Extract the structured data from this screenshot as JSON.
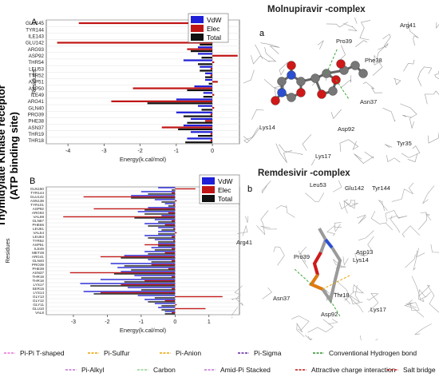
{
  "figure": {
    "side_title": "Thymidylate Kinase  receptor\n(ATP binding site)",
    "panel_A_letter": "A",
    "panel_B_letter": "B",
    "panel_a_letter": "a",
    "panel_b_letter": "b",
    "molnupiravir_title": "Molnupiravir -complex",
    "remdesivir_title": "Remdesivir -complex"
  },
  "colors": {
    "vdw": "#1f1fd8",
    "elec": "#c01515",
    "total": "#111111"
  },
  "legend": [
    "VdW",
    "Elec",
    "Total"
  ],
  "interaction_legend": [
    {
      "label": "Pi-Pi T-shaped",
      "color": "#e86fd8"
    },
    {
      "label": "Pi-Sulfur",
      "color": "#e8a400"
    },
    {
      "label": "Pi-Anion",
      "color": "#e8a400"
    },
    {
      "label": "Pi-Sigma",
      "color": "#6020a0"
    },
    {
      "label": "Conventional Hydrogen bond",
      "color": "#2f8f2f"
    },
    {
      "label": "Pi-Alkyl",
      "color": "#c070d0"
    },
    {
      "label": "Carbon",
      "color": "#8fd08f"
    },
    {
      "label": "Amid-Pi Stacked",
      "color": "#c070d0"
    },
    {
      "label": "Attractive charge interaction",
      "color": "#c01515"
    },
    {
      "label": "Salt bridge",
      "color": "#c01515"
    }
  ],
  "mol_labels_a": [
    "Arg41",
    "Pro39",
    "Phe38",
    "Asn37",
    "Asp92",
    "Lys14",
    "Lys17",
    "Tyr35"
  ],
  "mol_labels_b": [
    "Leu53",
    "Glu142",
    "Tyr144",
    "Arg41",
    "Pro39",
    "Asp13",
    "Lys14",
    "Asn37",
    "Thr18",
    "Asp92",
    "Lys17"
  ],
  "chart_data": [
    {
      "type": "bar",
      "orientation": "horizontal",
      "xlabel": "Energy(k.cal/mol)",
      "ylabel": "Residues",
      "xlim": [
        -4.6,
        0.75
      ],
      "xticks": [
        -4,
        -3,
        -2,
        -1,
        0
      ],
      "categories": [
        "GLU145",
        "TYR144",
        "ILE143",
        "GLU142",
        "ARG93",
        "ASP92",
        "THR54",
        "LEU53",
        "TYR52",
        "ASP51",
        "ASP50",
        "ILE49",
        "ARG41",
        "GLN40",
        "PRO39",
        "PHE38",
        "ASN37",
        "THR19",
        "THR18"
      ],
      "series": [
        {
          "name": "VdW",
          "values": [
            -0.3,
            -0.3,
            -0.2,
            -0.2,
            -0.4,
            -0.4,
            -0.8,
            -0.35,
            -0.2,
            -0.2,
            -0.5,
            -0.25,
            -1.0,
            -0.4,
            -1.0,
            -0.6,
            -0.8,
            -0.6,
            -0.7
          ]
        },
        {
          "name": "Elec",
          "values": [
            -3.7,
            -0.2,
            0.05,
            -4.3,
            -0.7,
            0.7,
            0.05,
            -0.05,
            -0.05,
            0.15,
            -2.2,
            0.05,
            -2.8,
            0.05,
            -0.05,
            -0.2,
            -1.4,
            -0.05,
            -0.05
          ]
        },
        {
          "name": "Total",
          "values": [
            -0.4,
            -0.35,
            -0.2,
            -0.35,
            -0.6,
            -0.3,
            -0.4,
            -0.35,
            -0.2,
            -0.1,
            -0.7,
            -0.25,
            -1.8,
            -0.3,
            -0.8,
            -0.7,
            -0.95,
            -0.4,
            -0.75
          ]
        }
      ]
    },
    {
      "type": "bar",
      "orientation": "horizontal",
      "xlabel": "Energy(k.cal/mol)",
      "ylabel": "Residues",
      "xlim": [
        -3.8,
        1.9
      ],
      "xticks": [
        -3,
        -2,
        -1,
        0,
        1
      ],
      "categories": [
        "GLN150",
        "TYR144",
        "GLU142",
        "ASN138",
        "TYR101",
        "ASP92",
        "ARG93",
        "VAL68",
        "GLN67",
        "PHE66",
        "LEU61",
        "VAL54",
        "LEU53",
        "TYR52",
        "ASP51",
        "ILE49",
        "MET48",
        "ARG41",
        "GLN40",
        "PRO39",
        "PHE38",
        "ASN37",
        "THR19",
        "THR18",
        "LYS17",
        "SER15",
        "LYS14",
        "GLY13",
        "GLY12",
        "GLY11",
        "GLU10",
        "VAL8"
      ],
      "series": [
        {
          "name": "VdW",
          "values": [
            -0.5,
            -1.0,
            -1.3,
            -0.6,
            -0.3,
            -0.8,
            -1.1,
            -0.4,
            -0.6,
            -0.9,
            -0.5,
            -0.5,
            -0.9,
            -0.6,
            -0.5,
            -0.7,
            -0.9,
            -1.5,
            -0.8,
            -1.9,
            -1.7,
            -1.6,
            -1.2,
            -2.2,
            -2.8,
            -1.4,
            -2.7,
            -1.1,
            -0.9,
            -0.6,
            -0.5,
            -0.3
          ]
        },
        {
          "name": "Elec",
          "values": [
            0.6,
            -0.1,
            -2.7,
            0.05,
            -0.05,
            -2.4,
            -0.2,
            -3.3,
            -0.1,
            -0.3,
            -0.05,
            0.05,
            -0.1,
            -0.05,
            -0.9,
            -0.1,
            -0.3,
            -2.2,
            -0.1,
            -0.7,
            -0.2,
            -3.1,
            -0.1,
            -0.9,
            -1.6,
            -0.1,
            -2.2,
            1.4,
            -0.3,
            0.05,
            0.9,
            -0.1
          ]
        },
        {
          "name": "Total",
          "values": [
            -0.1,
            -0.8,
            -1.3,
            -0.4,
            -0.2,
            -0.9,
            -0.9,
            -1.2,
            -0.5,
            -0.8,
            -0.4,
            -0.5,
            -0.8,
            -0.5,
            -0.5,
            -0.6,
            -0.8,
            -1.6,
            -0.7,
            -1.5,
            -1.3,
            -1.8,
            -1.0,
            -1.5,
            -2.5,
            -1.0,
            -2.4,
            -0.6,
            -0.8,
            -0.4,
            -0.4,
            -0.3
          ]
        }
      ]
    }
  ]
}
